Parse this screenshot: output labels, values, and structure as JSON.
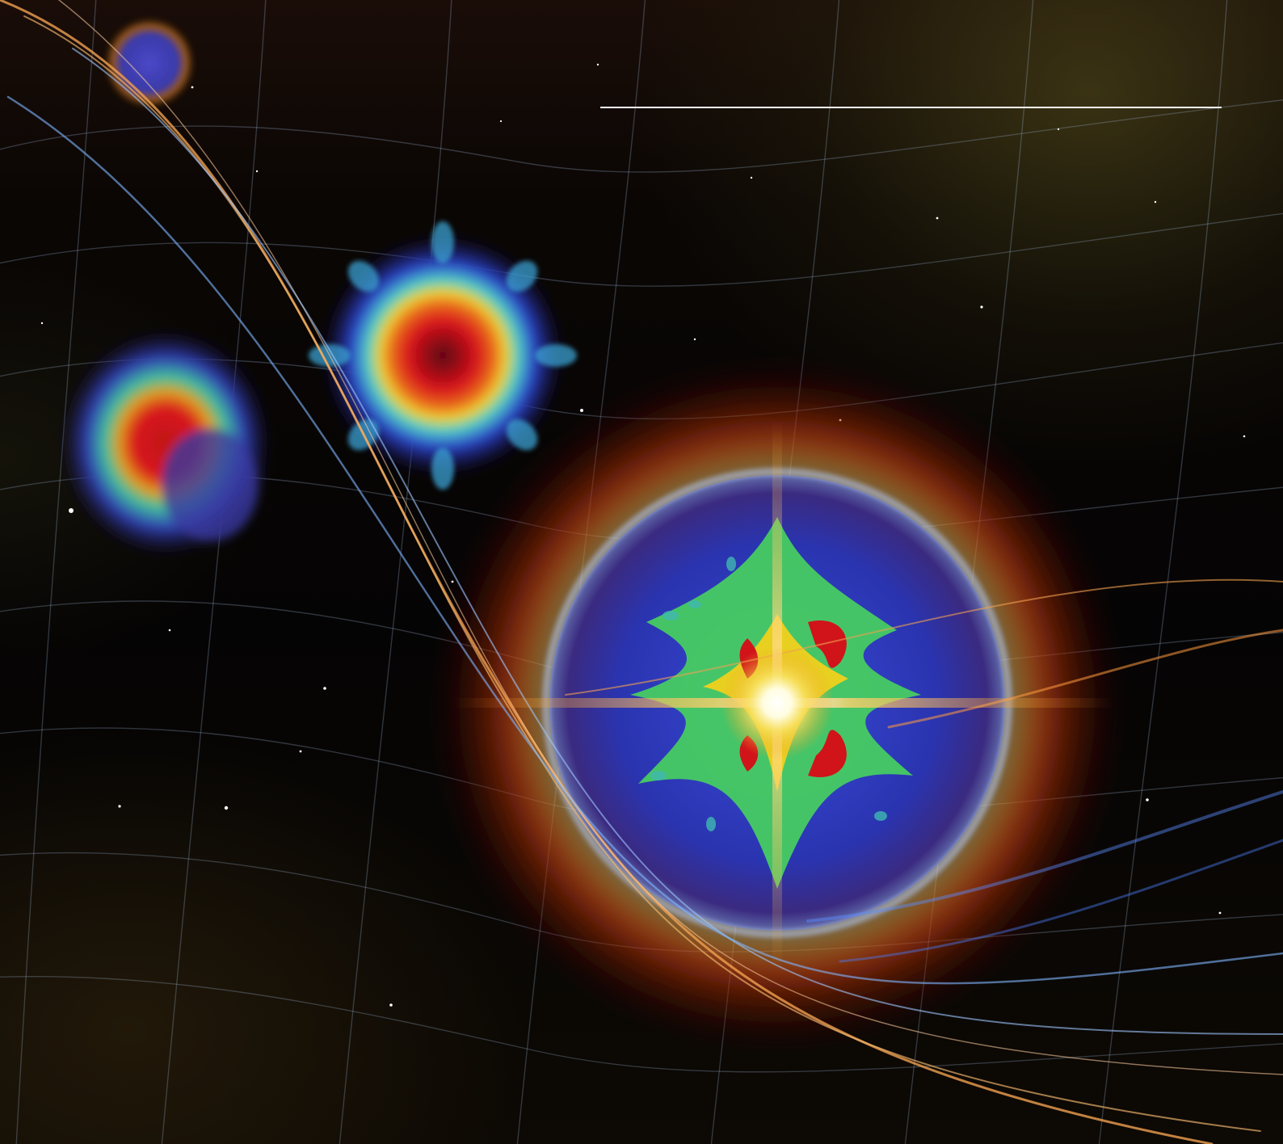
{
  "artwork": {
    "subject": "cosmic-explosion-illustration",
    "palette": {
      "background": "#050404",
      "rule": "#ffffff",
      "ribbon_orange": "#f0a050",
      "ribbon_blue": "#7fb6ff",
      "core_white": "#ffffff",
      "simulation_red": "#d0141a",
      "simulation_green": "#48d060",
      "simulation_blue": "#2a3ec8"
    }
  }
}
